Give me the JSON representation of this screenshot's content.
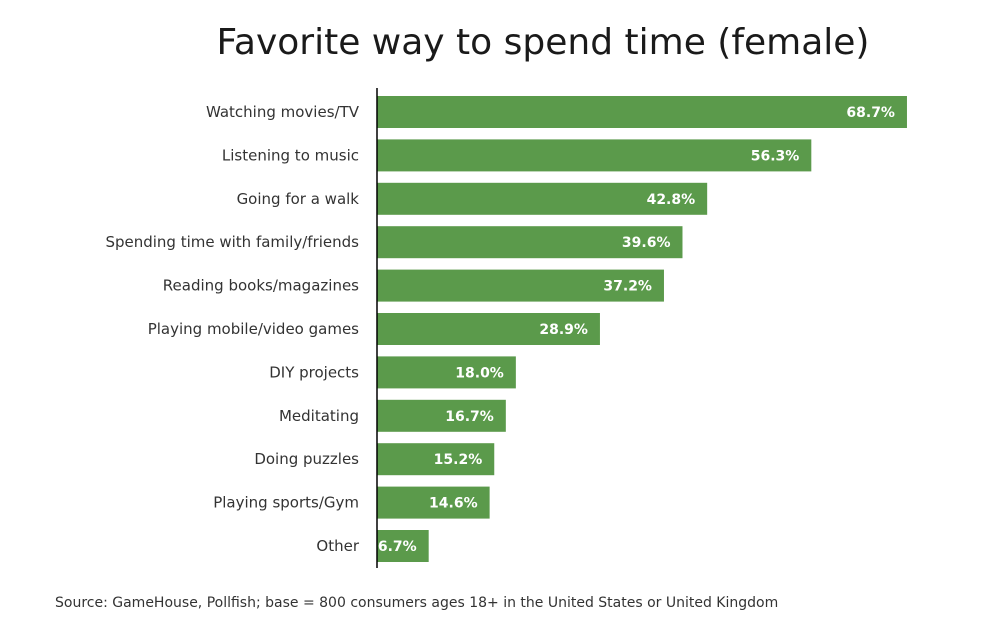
{
  "chart_data": {
    "type": "bar",
    "orientation": "horizontal",
    "title": "Favorite way to spend time (female)",
    "categories": [
      "Watching movies/TV",
      "Listening to music",
      "Going for a walk",
      "Spending time with family/friends",
      "Reading books/magazines",
      "Playing mobile/video games",
      "DIY projects",
      "Meditating",
      "Doing puzzles",
      "Playing sports/Gym",
      "Other"
    ],
    "values": [
      68.7,
      56.3,
      42.8,
      39.6,
      37.2,
      28.9,
      18.0,
      16.7,
      15.2,
      14.6,
      6.7
    ],
    "value_labels": [
      "68.7%",
      "56.3%",
      "42.8%",
      "39.6%",
      "37.2%",
      "28.9%",
      "18.0%",
      "16.7%",
      "15.2%",
      "14.6%",
      "6.7%"
    ],
    "xlim": [
      0,
      70
    ],
    "grid": false,
    "bar_color": "#5b9a4b",
    "label_color": "#ffffff"
  },
  "source": "Source: GameHouse, Pollfish; base = 800 consumers ages 18+ in the United States or United Kingdom"
}
